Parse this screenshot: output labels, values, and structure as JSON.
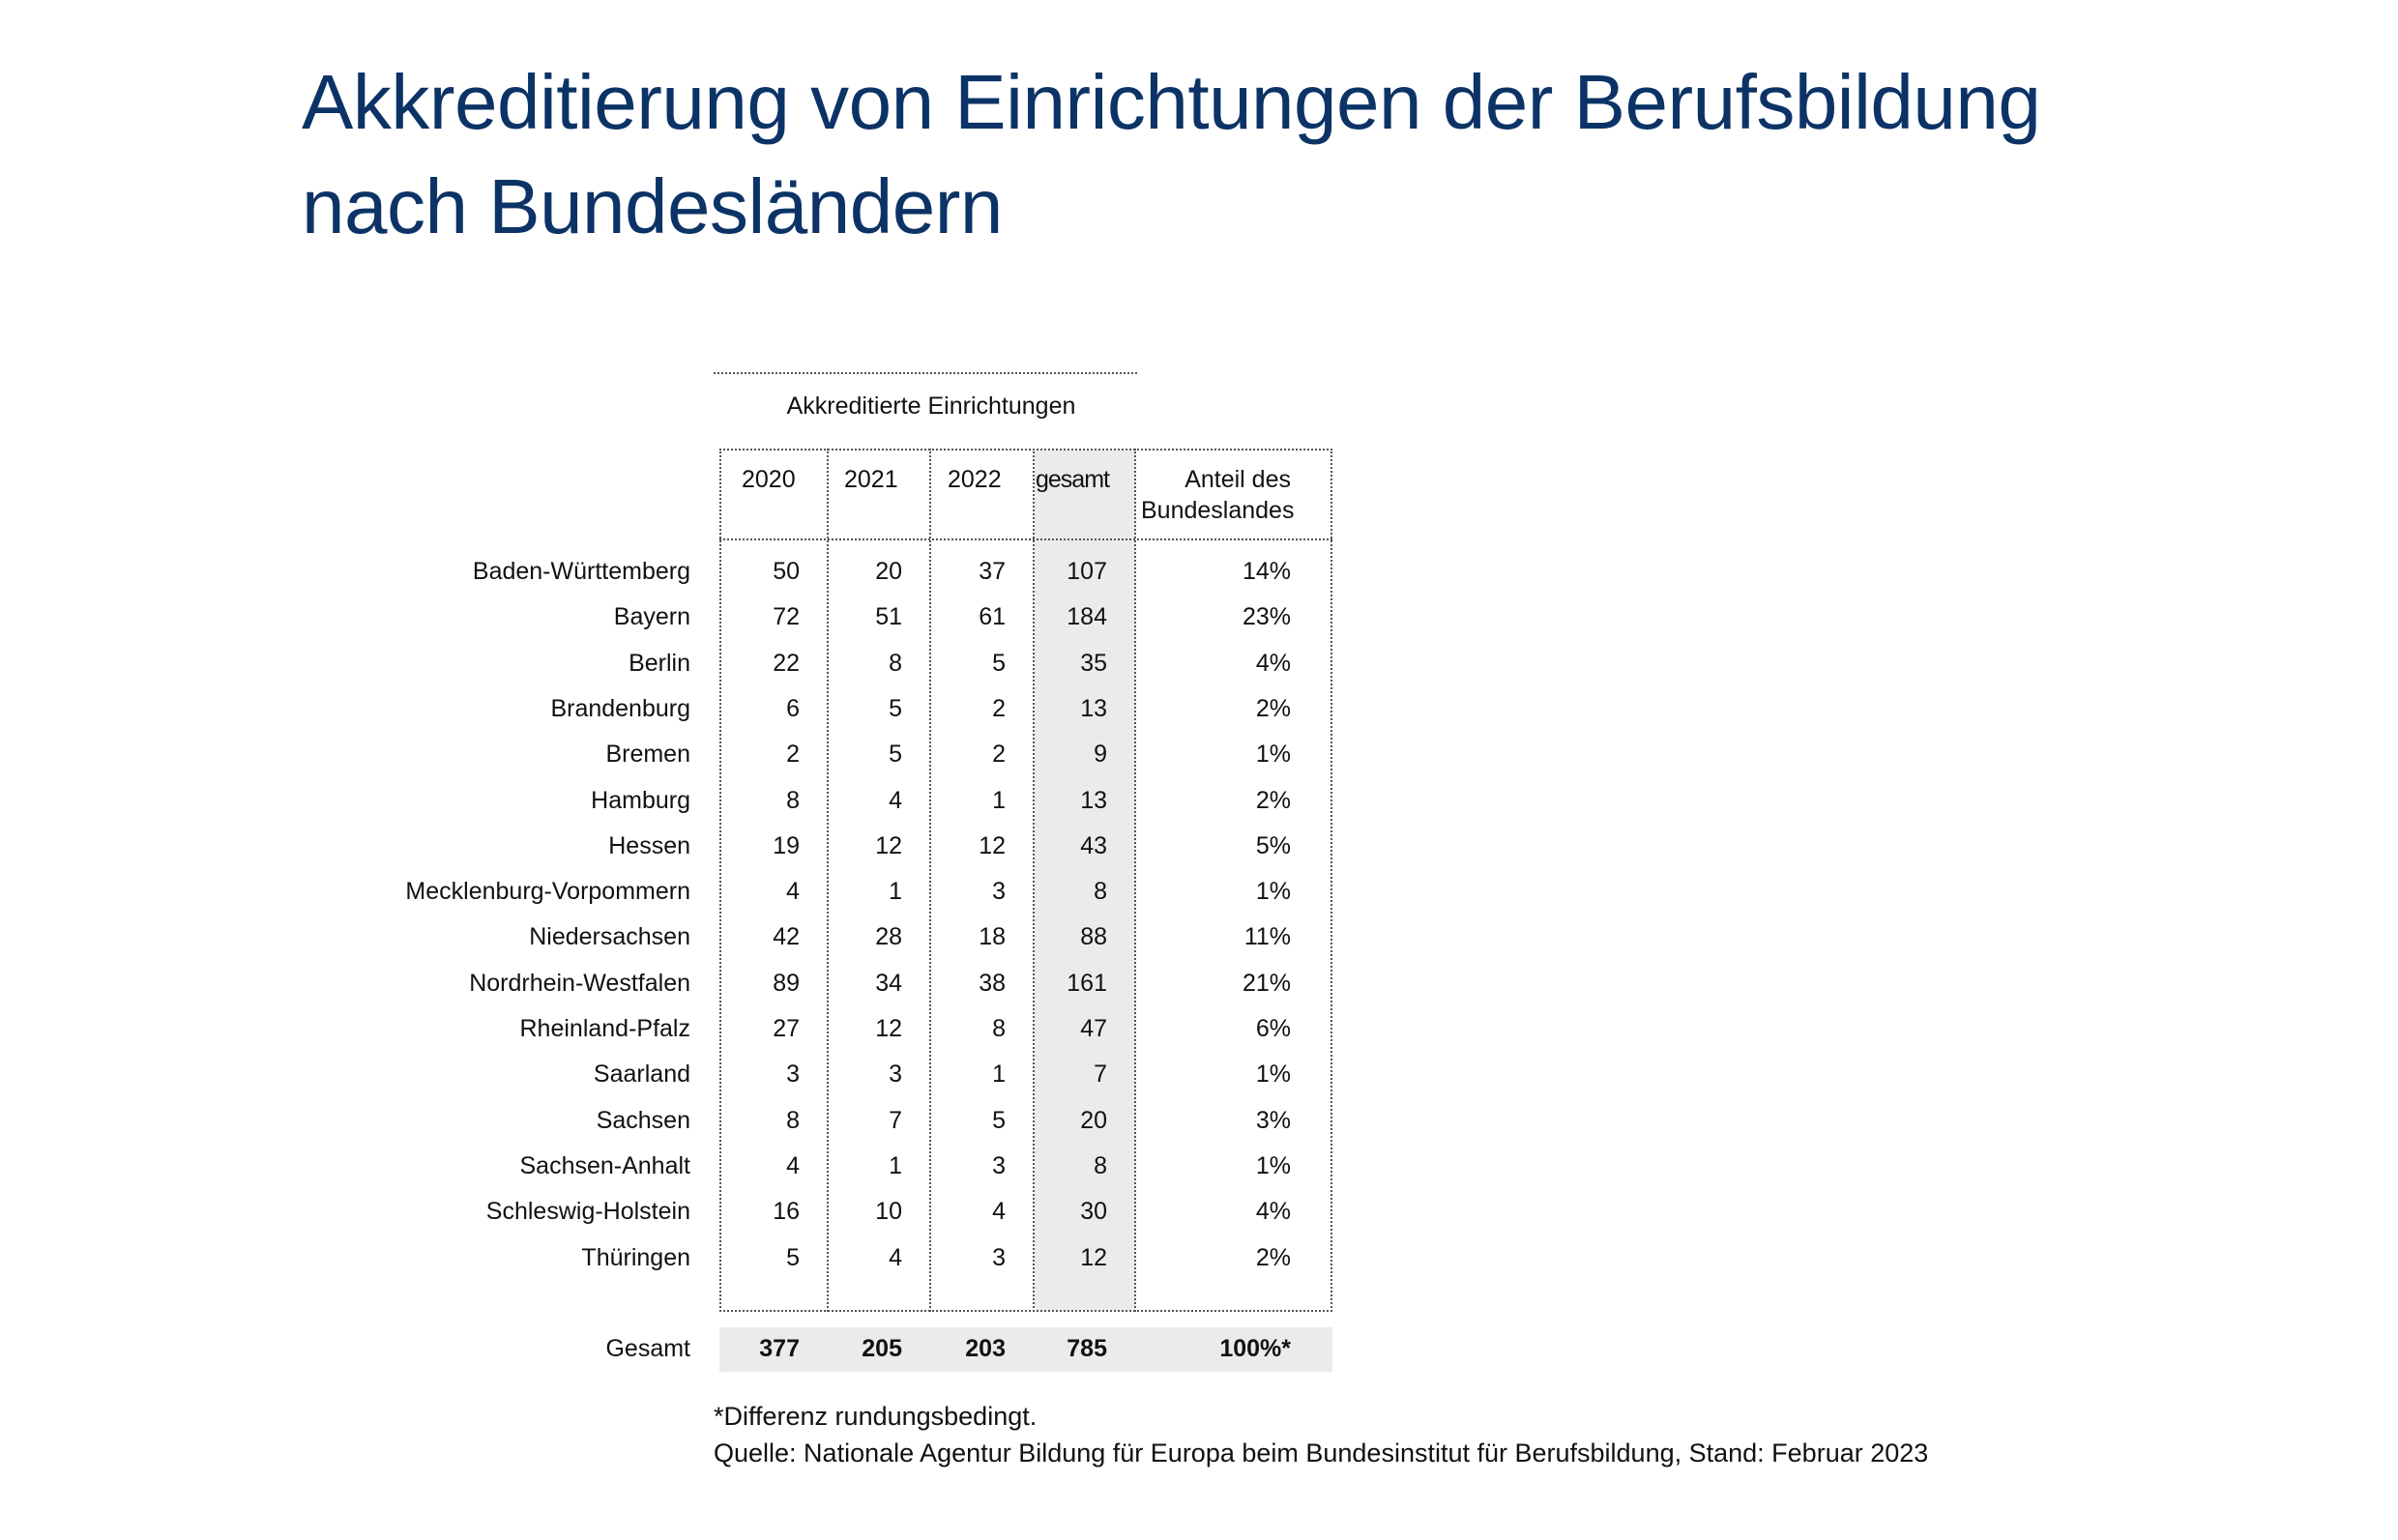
{
  "title": {
    "line1": "Akkreditierung von Einrichtungen der Berufsbildung",
    "line2": "nach Bundesländern"
  },
  "table": {
    "group_header": "Akkreditierte Einrichtungen",
    "columns": [
      "2020",
      "2021",
      "2022",
      "gesamt",
      "Anteil des",
      "Bundeslandes"
    ],
    "rows": [
      {
        "label": "Baden-Württemberg",
        "v": [
          "50",
          "20",
          "37",
          "107",
          "14%"
        ]
      },
      {
        "label": "Bayern",
        "v": [
          "72",
          "51",
          "61",
          "184",
          "23%"
        ]
      },
      {
        "label": "Berlin",
        "v": [
          "22",
          "8",
          "5",
          "35",
          "4%"
        ]
      },
      {
        "label": "Brandenburg",
        "v": [
          "6",
          "5",
          "2",
          "13",
          "2%"
        ]
      },
      {
        "label": "Bremen",
        "v": [
          "2",
          "5",
          "2",
          "9",
          "1%"
        ]
      },
      {
        "label": "Hamburg",
        "v": [
          "8",
          "4",
          "1",
          "13",
          "2%"
        ]
      },
      {
        "label": "Hessen",
        "v": [
          "19",
          "12",
          "12",
          "43",
          "5%"
        ]
      },
      {
        "label": "Mecklenburg-Vorpommern",
        "v": [
          "4",
          "1",
          "3",
          "8",
          "1%"
        ]
      },
      {
        "label": "Niedersachsen",
        "v": [
          "42",
          "28",
          "18",
          "88",
          "11%"
        ]
      },
      {
        "label": "Nordrhein-Westfalen",
        "v": [
          "89",
          "34",
          "38",
          "161",
          "21%"
        ]
      },
      {
        "label": "Rheinland-Pfalz",
        "v": [
          "27",
          "12",
          "8",
          "47",
          "6%"
        ]
      },
      {
        "label": "Saarland",
        "v": [
          "3",
          "3",
          "1",
          "7",
          "1%"
        ]
      },
      {
        "label": "Sachsen",
        "v": [
          "8",
          "7",
          "5",
          "20",
          "3%"
        ]
      },
      {
        "label": "Sachsen-Anhalt",
        "v": [
          "4",
          "1",
          "3",
          "8",
          "1%"
        ]
      },
      {
        "label": "Schleswig-Holstein",
        "v": [
          "16",
          "10",
          "4",
          "30",
          "4%"
        ]
      },
      {
        "label": "Thüringen",
        "v": [
          "5",
          "4",
          "3",
          "12",
          "2%"
        ]
      }
    ],
    "total": {
      "label": "Gesamt",
      "v": [
        "377",
        "205",
        "203",
        "785",
        "100%*"
      ]
    }
  },
  "footnotes": {
    "note": "*Differenz rundungsbedingt.",
    "source": "Quelle: Nationale Agentur Bildung für Europa beim Bundesinstitut für Berufsbildung, Stand: Februar 2023"
  },
  "colors": {
    "title": "#0c3366",
    "highlight": "#ebebeb"
  }
}
